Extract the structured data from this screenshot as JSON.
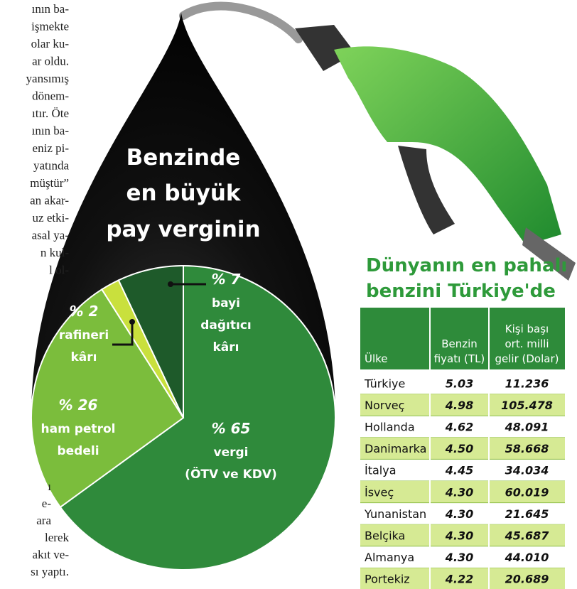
{
  "chart_data": {
    "type": "pie",
    "title": [
      "Benzinde",
      "en büyük",
      "pay verginin"
    ],
    "categories": [
      [
        "vergi",
        "(ÖTV ve KDV)"
      ],
      [
        "ham petrol",
        "bedeli"
      ],
      [
        "rafineri",
        "kârı"
      ],
      [
        "bayi",
        "dağıtıcı",
        "kârı"
      ]
    ],
    "values": [
      65,
      26,
      2,
      7
    ],
    "value_labels": [
      "% 65",
      "% 26",
      "% 2",
      "% 7"
    ],
    "colors": [
      "#2f8a3b",
      "#7bbd3c",
      "#c9e03d",
      "#1e5a2a"
    ]
  },
  "table": {
    "title": [
      "Dünyanın en pahalı",
      "benzini Türkiye'de"
    ],
    "header": [
      [
        "Ülke"
      ],
      [
        "Benzin",
        "fiyatı (TL)"
      ],
      [
        "Kişi başı",
        "ort. milli",
        "gelir (Dolar)"
      ]
    ],
    "rows": [
      [
        "Türkiye",
        "5.03",
        "11.236"
      ],
      [
        "Norveç",
        "4.98",
        "105.478"
      ],
      [
        "Hollanda",
        "4.62",
        "48.091"
      ],
      [
        "Danimarka",
        "4.50",
        "58.668"
      ],
      [
        "İtalya",
        "4.45",
        "34.034"
      ],
      [
        "İsveç",
        "4.30",
        "60.019"
      ],
      [
        "Yunanistan",
        "4.30",
        "21.645"
      ],
      [
        "Belçika",
        "4.30",
        "45.687"
      ],
      [
        "Almanya",
        "4.30",
        "44.010"
      ],
      [
        "Portekiz",
        "4.22",
        "20.689"
      ]
    ]
  },
  "article": {
    "top": [
      "ının ba-",
      "işmekte",
      "olar ku-",
      "ar oldu.",
      "yansımış",
      "dönem-",
      "ıtır. Öte",
      "ının ba-",
      "eniz pi-",
      "yatında",
      "müştür”",
      "an akar-",
      "uz etki-",
      "asal ya-",
      "n kul-",
      "l ol-"
    ],
    "bottom": [
      "ı",
      "e-",
      "ara",
      "lerek",
      "akıt ve-",
      "sı yaptı."
    ]
  }
}
